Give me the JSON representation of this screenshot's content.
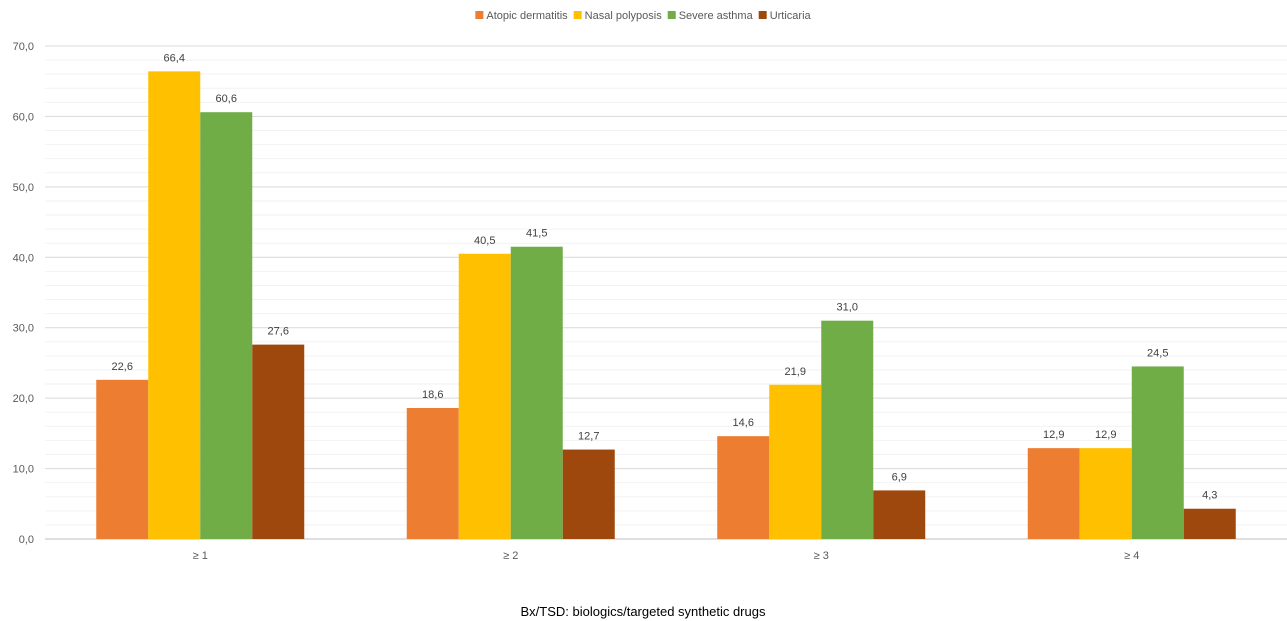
{
  "chart_data": {
    "type": "bar",
    "title": "",
    "xlabel": "",
    "ylabel": "",
    "categories": [
      "≥ 1",
      "≥ 2",
      "≥ 3",
      "≥ 4"
    ],
    "series": [
      {
        "name": "Atopic dermatitis",
        "color": "#ED7D31",
        "values": [
          22.6,
          18.6,
          14.6,
          12.9
        ],
        "labels": [
          "22,6",
          "18,6",
          "14,6",
          "12,9"
        ]
      },
      {
        "name": "Nasal polyposis",
        "color": "#FFC000",
        "values": [
          66.4,
          40.5,
          21.9,
          12.9
        ],
        "labels": [
          "66,4",
          "40,5",
          "21,9",
          "12,9"
        ]
      },
      {
        "name": "Severe asthma",
        "color": "#70AD47",
        "values": [
          60.6,
          41.5,
          31.0,
          24.5
        ],
        "labels": [
          "60,6",
          "41,5",
          "31,0",
          "24,5"
        ]
      },
      {
        "name": "Urticaria",
        "color": "#9E480E",
        "values": [
          27.6,
          12.7,
          6.9,
          4.3
        ],
        "labels": [
          "27,6",
          "12,7",
          "6,9",
          "4,3"
        ]
      }
    ],
    "ylim": [
      0,
      70
    ],
    "yticks": [
      0,
      10,
      20,
      30,
      40,
      50,
      60,
      70
    ],
    "ytick_labels": [
      "0,0",
      "10,0",
      "20,0",
      "30,0",
      "40,0",
      "50,0",
      "60,0",
      "70,0"
    ],
    "grid": true,
    "legend_position": "top"
  },
  "footnote": "Bx/TSD: biologics/targeted synthetic drugs"
}
